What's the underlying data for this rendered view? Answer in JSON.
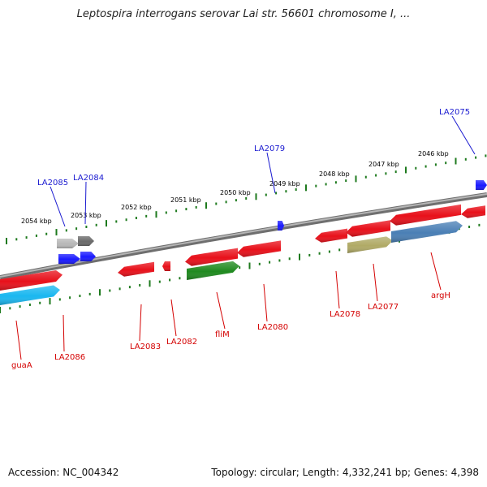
{
  "title": "Leptospira interrogans serovar Lai str. 56601 chromosome I, ...",
  "accession": "Accession: NC_004342",
  "topology": "Topology: circular; Length: 4,332,241 bp; Genes: 4,398",
  "colors": {
    "backbone": "#8a8a8a",
    "tick": "#1e7a1e",
    "red_gene": "#e8101a",
    "green_gene": "#1f8a1f",
    "blue_gene": "#1a1aff",
    "cyan_gene": "#1ab7f0",
    "olive_gene": "#b0aa66",
    "steel_gene": "#4a7fb5",
    "gray_light": "#b8b8b8",
    "gray_dark": "#6a6a6a",
    "label_red": "#d40000",
    "label_blue": "#1a1ad0"
  },
  "kbp_labels": [
    "2054 kbp",
    "2053 kbp",
    "2052 kbp",
    "2051 kbp",
    "2050 kbp",
    "2049 kbp",
    "2048 kbp",
    "2047 kbp",
    "2046 kbp"
  ],
  "gene_labels_top": [
    "LA2085",
    "LA2084",
    "LA2079",
    "LA2075"
  ],
  "gene_labels_bottom": [
    "guaA",
    "LA2086",
    "LA2083",
    "LA2082",
    "fliM",
    "LA2080",
    "LA2078",
    "LA2077",
    "argH"
  ]
}
